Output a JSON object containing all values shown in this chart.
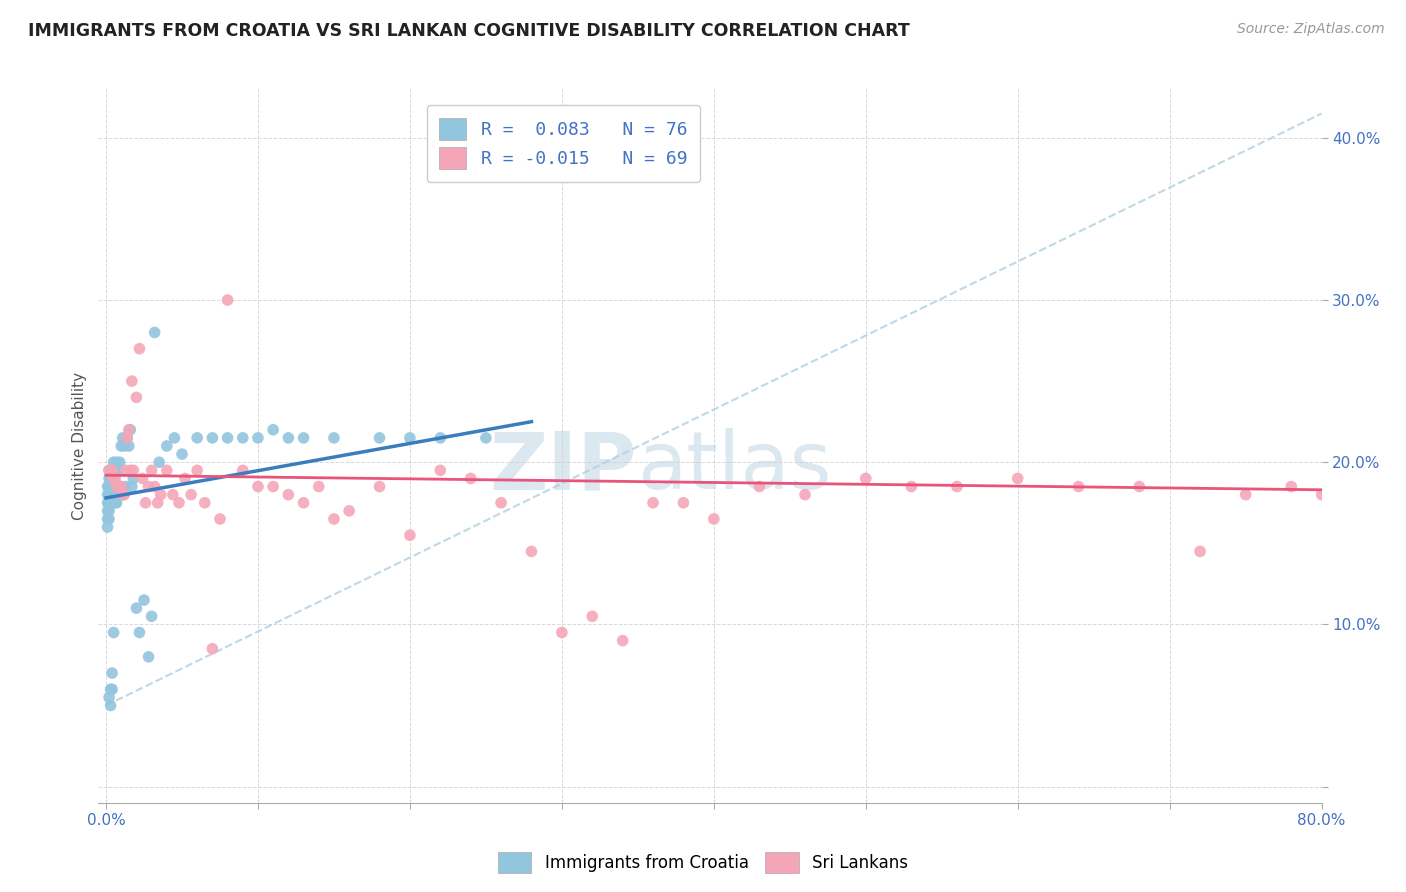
{
  "title": "IMMIGRANTS FROM CROATIA VS SRI LANKAN COGNITIVE DISABILITY CORRELATION CHART",
  "source": "Source: ZipAtlas.com",
  "ylabel": "Cognitive Disability",
  "xlim": [
    -0.005,
    0.8
  ],
  "ylim": [
    -0.01,
    0.43
  ],
  "x_ticks": [
    0.0,
    0.1,
    0.2,
    0.3,
    0.4,
    0.5,
    0.6,
    0.7,
    0.8
  ],
  "x_tick_labels": [
    "0.0%",
    "",
    "",
    "",
    "",
    "",
    "",
    "",
    "80.0%"
  ],
  "y_ticks": [
    0.0,
    0.1,
    0.2,
    0.3,
    0.4
  ],
  "y_tick_labels": [
    "",
    "10.0%",
    "20.0%",
    "30.0%",
    "40.0%"
  ],
  "legend_r_blue": "R =  0.083",
  "legend_n_blue": "N = 76",
  "legend_r_pink": "R = -0.015",
  "legend_n_pink": "N = 69",
  "blue_color": "#92c5de",
  "pink_color": "#f4a6b8",
  "blue_line_color": "#3a7dbf",
  "pink_line_color": "#e8547a",
  "dashed_line_color": "#b0cfe0",
  "watermark_zip": "ZIP",
  "watermark_atlas": "atlas",
  "blue_scatter_x": [
    0.001,
    0.001,
    0.001,
    0.001,
    0.001,
    0.001,
    0.002,
    0.002,
    0.002,
    0.002,
    0.002,
    0.002,
    0.002,
    0.002,
    0.003,
    0.003,
    0.003,
    0.003,
    0.003,
    0.003,
    0.003,
    0.004,
    0.004,
    0.004,
    0.004,
    0.004,
    0.004,
    0.005,
    0.005,
    0.005,
    0.005,
    0.005,
    0.006,
    0.006,
    0.006,
    0.007,
    0.007,
    0.007,
    0.008,
    0.008,
    0.009,
    0.009,
    0.01,
    0.01,
    0.011,
    0.011,
    0.012,
    0.013,
    0.014,
    0.015,
    0.016,
    0.017,
    0.018,
    0.02,
    0.022,
    0.025,
    0.028,
    0.03,
    0.032,
    0.035,
    0.04,
    0.045,
    0.05,
    0.06,
    0.07,
    0.08,
    0.09,
    0.1,
    0.11,
    0.12,
    0.13,
    0.15,
    0.18,
    0.2,
    0.22,
    0.25
  ],
  "blue_scatter_y": [
    0.185,
    0.18,
    0.175,
    0.17,
    0.165,
    0.16,
    0.195,
    0.19,
    0.185,
    0.18,
    0.175,
    0.17,
    0.165,
    0.055,
    0.195,
    0.19,
    0.185,
    0.18,
    0.175,
    0.06,
    0.05,
    0.195,
    0.19,
    0.185,
    0.175,
    0.07,
    0.06,
    0.2,
    0.195,
    0.185,
    0.175,
    0.095,
    0.195,
    0.185,
    0.175,
    0.2,
    0.185,
    0.175,
    0.195,
    0.185,
    0.2,
    0.18,
    0.21,
    0.185,
    0.215,
    0.18,
    0.21,
    0.185,
    0.215,
    0.21,
    0.22,
    0.185,
    0.19,
    0.11,
    0.095,
    0.115,
    0.08,
    0.105,
    0.28,
    0.2,
    0.21,
    0.215,
    0.205,
    0.215,
    0.215,
    0.215,
    0.215,
    0.215,
    0.22,
    0.215,
    0.215,
    0.215,
    0.215,
    0.215,
    0.215,
    0.215
  ],
  "pink_scatter_x": [
    0.002,
    0.003,
    0.004,
    0.005,
    0.006,
    0.007,
    0.008,
    0.009,
    0.01,
    0.011,
    0.012,
    0.013,
    0.014,
    0.015,
    0.016,
    0.017,
    0.018,
    0.02,
    0.022,
    0.024,
    0.026,
    0.028,
    0.03,
    0.032,
    0.034,
    0.036,
    0.04,
    0.044,
    0.048,
    0.052,
    0.056,
    0.06,
    0.065,
    0.07,
    0.075,
    0.08,
    0.09,
    0.1,
    0.11,
    0.12,
    0.13,
    0.14,
    0.15,
    0.16,
    0.18,
    0.2,
    0.22,
    0.24,
    0.26,
    0.28,
    0.3,
    0.32,
    0.34,
    0.36,
    0.38,
    0.4,
    0.43,
    0.46,
    0.5,
    0.53,
    0.56,
    0.6,
    0.64,
    0.68,
    0.72,
    0.75,
    0.78,
    0.8,
    0.81
  ],
  "pink_scatter_y": [
    0.195,
    0.195,
    0.195,
    0.19,
    0.19,
    0.185,
    0.185,
    0.185,
    0.185,
    0.18,
    0.18,
    0.195,
    0.215,
    0.22,
    0.195,
    0.25,
    0.195,
    0.24,
    0.27,
    0.19,
    0.175,
    0.185,
    0.195,
    0.185,
    0.175,
    0.18,
    0.195,
    0.18,
    0.175,
    0.19,
    0.18,
    0.195,
    0.175,
    0.085,
    0.165,
    0.3,
    0.195,
    0.185,
    0.185,
    0.18,
    0.175,
    0.185,
    0.165,
    0.17,
    0.185,
    0.155,
    0.195,
    0.19,
    0.175,
    0.145,
    0.095,
    0.105,
    0.09,
    0.175,
    0.175,
    0.165,
    0.185,
    0.18,
    0.19,
    0.185,
    0.185,
    0.19,
    0.185,
    0.185,
    0.145,
    0.18,
    0.185,
    0.18,
    0.185
  ],
  "blue_line_x0": 0.0,
  "blue_line_x1": 0.28,
  "blue_line_y0": 0.178,
  "blue_line_y1": 0.225,
  "pink_line_x0": 0.0,
  "pink_line_x1": 0.8,
  "pink_line_y0": 0.192,
  "pink_line_y1": 0.183,
  "dash_line_x0": 0.0,
  "dash_line_x1": 0.8,
  "dash_line_y0": 0.05,
  "dash_line_y1": 0.415
}
